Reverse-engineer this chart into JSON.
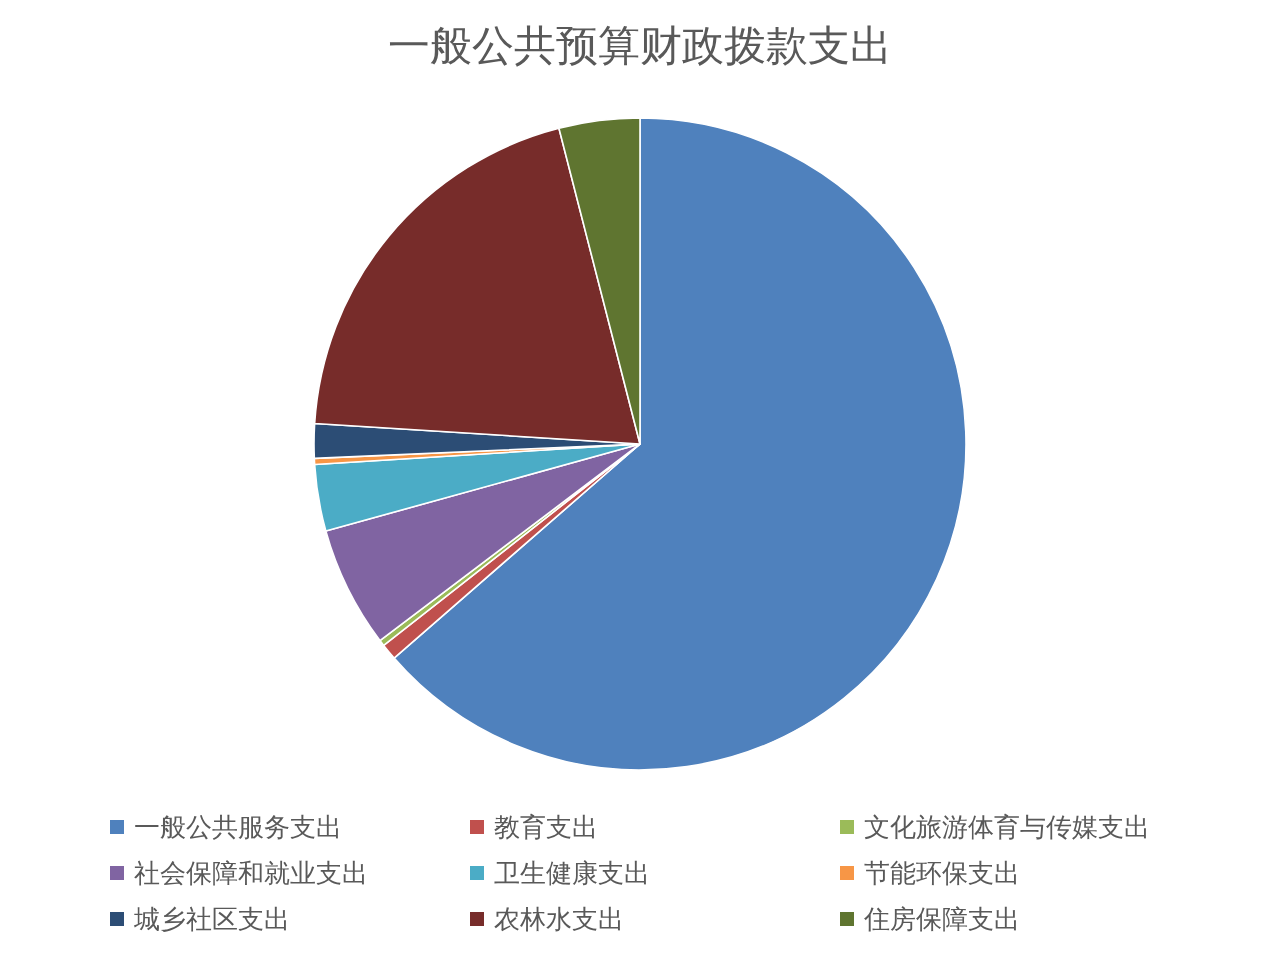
{
  "chart_data": {
    "type": "pie",
    "title": "一般公共预算财政拨款支出",
    "categories": [
      "一般公共服务支出",
      "教育支出",
      "文化旅游体育与传媒支出",
      "社会保障和就业支出",
      "卫生健康支出",
      "节能环保支出",
      "城乡社区支出",
      "农林水支出",
      "住房保障支出"
    ],
    "values": [
      63.6,
      0.8,
      0.3,
      6.0,
      3.3,
      0.3,
      1.7,
      20.0,
      4.0
    ],
    "colors": [
      "#4f81bd",
      "#c0504d",
      "#9bbb59",
      "#8064a2",
      "#4bacc6",
      "#f79646",
      "#2c4d75",
      "#772c2a",
      "#5f7530"
    ],
    "legend": "bottom"
  }
}
